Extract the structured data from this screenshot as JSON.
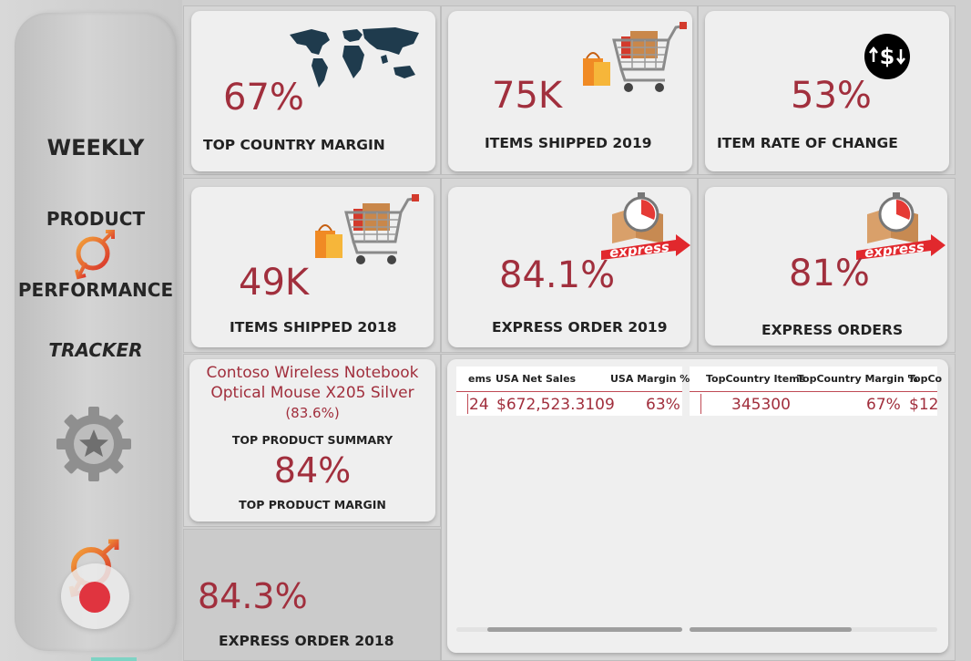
{
  "sidebar": {
    "weekly": "WEEKLY",
    "product": "PRODUCT",
    "performance": "PERFORMANCE",
    "tracker": "TRACKER"
  },
  "cards": {
    "top_country": {
      "value": "67%",
      "label": "TOP COUNTRY MARGIN"
    },
    "items_2019": {
      "value": "75K",
      "label": "ITEMS SHIPPED 2019"
    },
    "item_rate": {
      "value": "53%",
      "label": "ITEM RATE OF CHANGE"
    },
    "items_2018": {
      "value": "49K",
      "label": "ITEMS SHIPPED  2018"
    },
    "express_2019": {
      "value": "84.1%",
      "label": "EXPRESS ORDER 2019"
    },
    "express_orders": {
      "value": "81%",
      "label": "EXPRESS ORDERS"
    },
    "top_product": {
      "name_line1": "Contoso Wireless Notebook",
      "name_line2": "Optical Mouse X205 Silver",
      "name_pct": "(83.6%)",
      "summary_label": "TOP PRODUCT SUMMARY",
      "margin_value": "84%",
      "margin_label": "TOP PRODUCT MARGIN"
    },
    "express_2018": {
      "value": "84.3%",
      "label": "EXPRESS ORDER 2018"
    }
  },
  "badges": {
    "express": "express",
    "currency": "$"
  },
  "table_left": {
    "headers": [
      "ems",
      "USA Net Sales",
      "USA Margin %"
    ],
    "row": [
      "24",
      "$672,523.3109",
      "63%"
    ]
  },
  "table_right": {
    "headers": [
      "TopCountry Items",
      "TopCountry Margin %",
      "TopCo"
    ],
    "row": [
      "345300",
      "67%",
      "$12"
    ]
  },
  "colors": {
    "accent": "#a12f3d",
    "card": "#efefef",
    "background": "#cfcfcf"
  },
  "icons": {
    "map": "world-map-icon",
    "cart": "shopping-cart-icon",
    "currency": "currency-exchange-icon",
    "express": "express-delivery-icon",
    "gear": "gear-star-icon",
    "logo": "brand-logo-icon",
    "record": "record-button"
  }
}
